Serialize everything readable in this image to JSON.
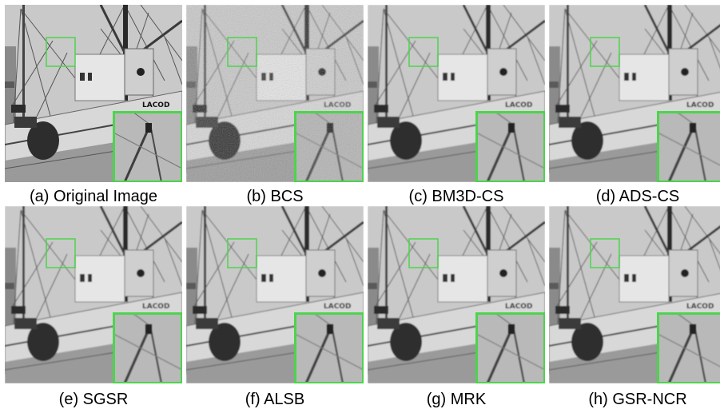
{
  "figure": {
    "panels": [
      {
        "caption": "(a) Original Image",
        "variant": "original"
      },
      {
        "caption": "(b) BCS",
        "variant": "noisy"
      },
      {
        "caption": "(c) BM3D-CS",
        "variant": "smooth"
      },
      {
        "caption": "(d) ADS-CS",
        "variant": "smooth"
      },
      {
        "caption": "(e) SGSR",
        "variant": "smooth"
      },
      {
        "caption": "(f) ALSB",
        "variant": "smooth"
      },
      {
        "caption": "(g) MRK",
        "variant": "smooth"
      },
      {
        "caption": "(h) GSR-NCR",
        "variant": "smooth"
      }
    ],
    "boat_text": "LACOD",
    "colors": {
      "zoom_box": "#4cd44c",
      "sky": "#c9c9c9",
      "hull": "#d8d8d8",
      "dark": "#2a2a2a"
    }
  }
}
